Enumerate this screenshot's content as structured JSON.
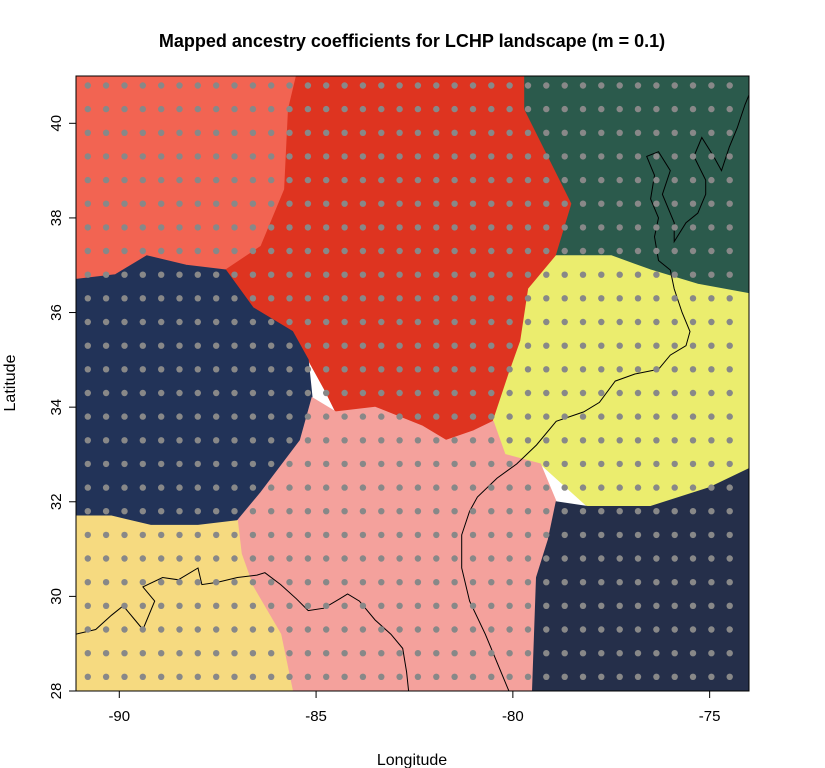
{
  "chart_data": {
    "type": "heatmap",
    "title": "Mapped ancestry coefficients for LCHP landscape (m = 0.1)",
    "xlabel": "Longitude",
    "ylabel": "Latitude",
    "xlim": [
      -91.1,
      -74.0
    ],
    "ylim": [
      28.0,
      41.0
    ],
    "x_ticks": [
      -90,
      -85,
      -80,
      -75
    ],
    "y_ticks": [
      28,
      30,
      32,
      34,
      36,
      38,
      40
    ],
    "x_tick_labels": [
      "-90",
      "-85",
      "-80",
      "-75"
    ],
    "y_tick_labels": [
      "28",
      "30",
      "32",
      "34",
      "36",
      "38",
      "40"
    ],
    "grid": false,
    "legend": "none",
    "sample_grid": {
      "lon_start": -90.8,
      "lon_step": 0.466,
      "lon_count": 36,
      "lat_start": 28.3,
      "lat_step": 0.5,
      "lat_count": 26,
      "point_color": "#888888"
    },
    "clusters": [
      {
        "color": "#f26452",
        "polygon": [
          [
            -91.1,
            41.0
          ],
          [
            -85.5,
            41.0
          ],
          [
            -85.7,
            40.3
          ],
          [
            -85.8,
            38.6
          ],
          [
            -86.4,
            37.4
          ],
          [
            -87.3,
            36.9
          ],
          [
            -88.3,
            37.0
          ],
          [
            -89.3,
            37.2
          ],
          [
            -90.1,
            36.8
          ],
          [
            -91.1,
            36.7
          ]
        ]
      },
      {
        "color": "#de3420",
        "polygon": [
          [
            -85.5,
            41.0
          ],
          [
            -79.7,
            41.0
          ],
          [
            -79.7,
            40.3
          ],
          [
            -79.1,
            39.3
          ],
          [
            -78.5,
            38.3
          ],
          [
            -78.9,
            37.2
          ],
          [
            -79.6,
            36.5
          ],
          [
            -79.8,
            35.4
          ],
          [
            -80.1,
            34.7
          ],
          [
            -80.5,
            33.7
          ],
          [
            -81.0,
            33.5
          ],
          [
            -81.7,
            33.3
          ],
          [
            -82.3,
            33.6
          ],
          [
            -83.5,
            34.0
          ],
          [
            -84.5,
            33.9
          ],
          [
            -84.8,
            34.4
          ],
          [
            -85.2,
            35.0
          ],
          [
            -85.6,
            35.6
          ],
          [
            -86.6,
            36.1
          ],
          [
            -87.3,
            36.9
          ],
          [
            -86.4,
            37.4
          ],
          [
            -85.8,
            38.6
          ],
          [
            -85.7,
            40.3
          ]
        ]
      },
      {
        "color": "#2b5a4c",
        "polygon": [
          [
            -79.7,
            41.0
          ],
          [
            -74.0,
            41.0
          ],
          [
            -74.0,
            36.4
          ],
          [
            -75.3,
            36.6
          ],
          [
            -76.5,
            36.9
          ],
          [
            -77.5,
            37.2
          ],
          [
            -78.9,
            37.2
          ],
          [
            -78.5,
            38.3
          ],
          [
            -79.1,
            39.3
          ],
          [
            -79.7,
            40.3
          ]
        ]
      },
      {
        "color": "#ebed6e",
        "polygon": [
          [
            -74.0,
            36.4
          ],
          [
            -74.0,
            32.7
          ],
          [
            -75.0,
            32.3
          ],
          [
            -76.5,
            31.9
          ],
          [
            -78.1,
            31.9
          ],
          [
            -79.3,
            32.8
          ],
          [
            -80.2,
            33.0
          ],
          [
            -80.5,
            33.7
          ],
          [
            -80.1,
            34.7
          ],
          [
            -79.8,
            35.4
          ],
          [
            -79.6,
            36.5
          ],
          [
            -78.9,
            37.2
          ],
          [
            -77.5,
            37.2
          ],
          [
            -76.5,
            36.9
          ],
          [
            -75.3,
            36.6
          ]
        ]
      },
      {
        "color": "#223358",
        "polygon": [
          [
            -91.1,
            36.7
          ],
          [
            -90.1,
            36.8
          ],
          [
            -89.3,
            37.2
          ],
          [
            -88.3,
            37.0
          ],
          [
            -87.3,
            36.9
          ],
          [
            -86.6,
            36.1
          ],
          [
            -85.6,
            35.6
          ],
          [
            -85.2,
            35.0
          ],
          [
            -85.1,
            34.2
          ],
          [
            -85.4,
            33.3
          ],
          [
            -86.4,
            32.2
          ],
          [
            -87.0,
            31.6
          ],
          [
            -88.0,
            31.5
          ],
          [
            -89.2,
            31.5
          ],
          [
            -90.2,
            31.7
          ],
          [
            -91.1,
            31.7
          ]
        ]
      },
      {
        "color": "#f4a19c",
        "polygon": [
          [
            -87.0,
            31.6
          ],
          [
            -86.4,
            32.2
          ],
          [
            -85.4,
            33.3
          ],
          [
            -85.1,
            34.2
          ],
          [
            -84.5,
            33.9
          ],
          [
            -83.5,
            34.0
          ],
          [
            -82.3,
            33.6
          ],
          [
            -81.7,
            33.3
          ],
          [
            -81.0,
            33.5
          ],
          [
            -80.5,
            33.7
          ],
          [
            -80.2,
            33.0
          ],
          [
            -79.3,
            32.8
          ],
          [
            -78.9,
            32.0
          ],
          [
            -79.1,
            31.2
          ],
          [
            -79.4,
            30.4
          ],
          [
            -79.5,
            28.0
          ],
          [
            -85.6,
            28.0
          ],
          [
            -85.9,
            29.2
          ],
          [
            -86.6,
            30.2
          ],
          [
            -86.9,
            30.9
          ]
        ]
      },
      {
        "color": "#f6da80",
        "polygon": [
          [
            -91.1,
            31.7
          ],
          [
            -90.2,
            31.7
          ],
          [
            -89.2,
            31.5
          ],
          [
            -88.0,
            31.5
          ],
          [
            -87.0,
            31.6
          ],
          [
            -86.9,
            30.9
          ],
          [
            -86.6,
            30.2
          ],
          [
            -85.9,
            29.2
          ],
          [
            -85.6,
            28.0
          ],
          [
            -91.1,
            28.0
          ]
        ]
      },
      {
        "color": "#252f4a",
        "polygon": [
          [
            -79.5,
            28.0
          ],
          [
            -74.0,
            28.0
          ],
          [
            -74.0,
            32.7
          ],
          [
            -75.0,
            32.3
          ],
          [
            -76.5,
            31.9
          ],
          [
            -78.1,
            31.9
          ],
          [
            -78.9,
            32.0
          ],
          [
            -79.1,
            31.2
          ],
          [
            -79.4,
            30.4
          ]
        ]
      }
    ],
    "coastlines": [
      [
        [
          -91.1,
          29.2
        ],
        [
          -90.6,
          29.3
        ],
        [
          -90.2,
          29.6
        ],
        [
          -89.9,
          29.8
        ],
        [
          -89.6,
          29.5
        ],
        [
          -89.4,
          29.3
        ],
        [
          -89.1,
          29.9
        ],
        [
          -89.4,
          30.2
        ],
        [
          -88.9,
          30.4
        ],
        [
          -88.5,
          30.35
        ],
        [
          -88.0,
          30.6
        ],
        [
          -87.9,
          30.25
        ],
        [
          -87.5,
          30.3
        ],
        [
          -87.0,
          30.4
        ],
        [
          -86.5,
          30.45
        ],
        [
          -86.3,
          30.5
        ],
        [
          -85.9,
          30.25
        ],
        [
          -85.5,
          29.95
        ],
        [
          -85.2,
          29.7
        ],
        [
          -84.8,
          29.75
        ],
        [
          -84.4,
          29.95
        ],
        [
          -84.2,
          30.05
        ],
        [
          -83.9,
          29.9
        ],
        [
          -83.5,
          29.5
        ],
        [
          -83.1,
          29.2
        ],
        [
          -82.8,
          28.9
        ],
        [
          -82.7,
          28.4
        ],
        [
          -82.65,
          28.0
        ]
      ],
      [
        [
          -80.1,
          28.0
        ],
        [
          -80.4,
          28.6
        ],
        [
          -80.7,
          29.2
        ],
        [
          -81.1,
          29.9
        ],
        [
          -81.3,
          30.6
        ],
        [
          -81.3,
          31.3
        ],
        [
          -81.1,
          31.8
        ],
        [
          -80.9,
          32.1
        ],
        [
          -80.4,
          32.5
        ],
        [
          -79.9,
          32.8
        ],
        [
          -79.4,
          33.2
        ],
        [
          -78.9,
          33.7
        ],
        [
          -78.2,
          33.9
        ],
        [
          -77.8,
          34.1
        ],
        [
          -77.4,
          34.55
        ],
        [
          -76.9,
          34.7
        ],
        [
          -76.3,
          34.8
        ],
        [
          -76.0,
          35.1
        ],
        [
          -75.6,
          35.3
        ],
        [
          -75.5,
          35.6
        ],
        [
          -75.7,
          36.0
        ],
        [
          -75.9,
          36.5
        ],
        [
          -76.0,
          36.9
        ],
        [
          -76.3,
          37.1
        ],
        [
          -76.4,
          37.6
        ],
        [
          -76.3,
          38.0
        ],
        [
          -76.5,
          38.4
        ],
        [
          -76.4,
          38.9
        ],
        [
          -76.6,
          39.3
        ],
        [
          -76.3,
          39.4
        ],
        [
          -76.0,
          39.0
        ],
        [
          -76.2,
          38.5
        ],
        [
          -75.9,
          37.9
        ],
        [
          -75.9,
          37.5
        ],
        [
          -75.6,
          37.9
        ],
        [
          -75.3,
          38.1
        ],
        [
          -75.1,
          38.5
        ],
        [
          -75.1,
          38.8
        ],
        [
          -75.4,
          39.3
        ],
        [
          -75.2,
          39.7
        ],
        [
          -74.9,
          39.3
        ],
        [
          -74.7,
          39.0
        ],
        [
          -74.5,
          39.5
        ],
        [
          -74.3,
          39.9
        ],
        [
          -74.1,
          40.4
        ],
        [
          -74.0,
          40.6
        ]
      ]
    ]
  }
}
